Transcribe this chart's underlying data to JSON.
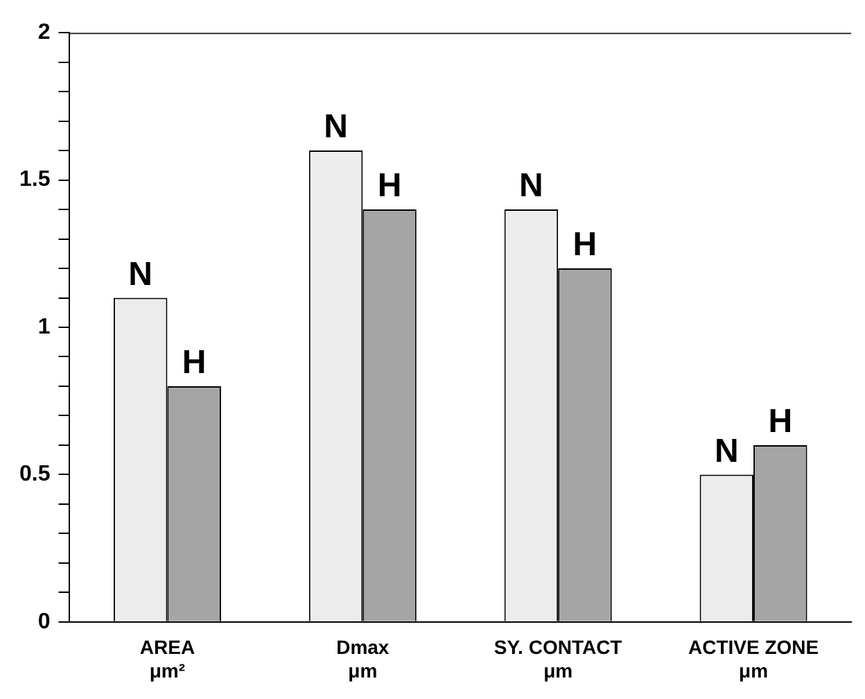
{
  "chart_data": {
    "type": "bar",
    "categories": [
      "AREA\nμm²",
      "Dmax\nμm",
      "SY. CONTACT\nμm",
      "ACTIVE ZONE\nμm"
    ],
    "series": [
      {
        "name": "N",
        "color": "#ececec",
        "values": [
          1.1,
          1.6,
          1.4,
          0.5
        ]
      },
      {
        "name": "H",
        "color": "#a5a5a5",
        "values": [
          0.8,
          1.4,
          1.2,
          0.6
        ]
      }
    ],
    "ylim": [
      0,
      2
    ],
    "yticks": [
      0,
      {
        "value": 0.1,
        "label": null
      },
      {
        "value": 0.2,
        "label": null
      },
      {
        "value": 0.3,
        "label": null
      },
      {
        "value": 0.4,
        "label": null
      },
      0.5,
      {
        "value": 0.6,
        "label": null
      },
      {
        "value": 0.7,
        "label": null
      },
      {
        "value": 0.8,
        "label": null
      },
      {
        "value": 0.9,
        "label": null
      },
      1,
      {
        "value": 1.1,
        "label": null
      },
      {
        "value": 1.2,
        "label": null
      },
      {
        "value": 1.3,
        "label": null
      },
      {
        "value": 1.4,
        "label": null
      },
      1.5,
      {
        "value": 1.6,
        "label": null
      },
      {
        "value": 1.7,
        "label": null
      },
      {
        "value": 1.8,
        "label": null
      },
      {
        "value": 1.9,
        "label": null
      },
      2
    ],
    "grid": false,
    "legend": false
  }
}
